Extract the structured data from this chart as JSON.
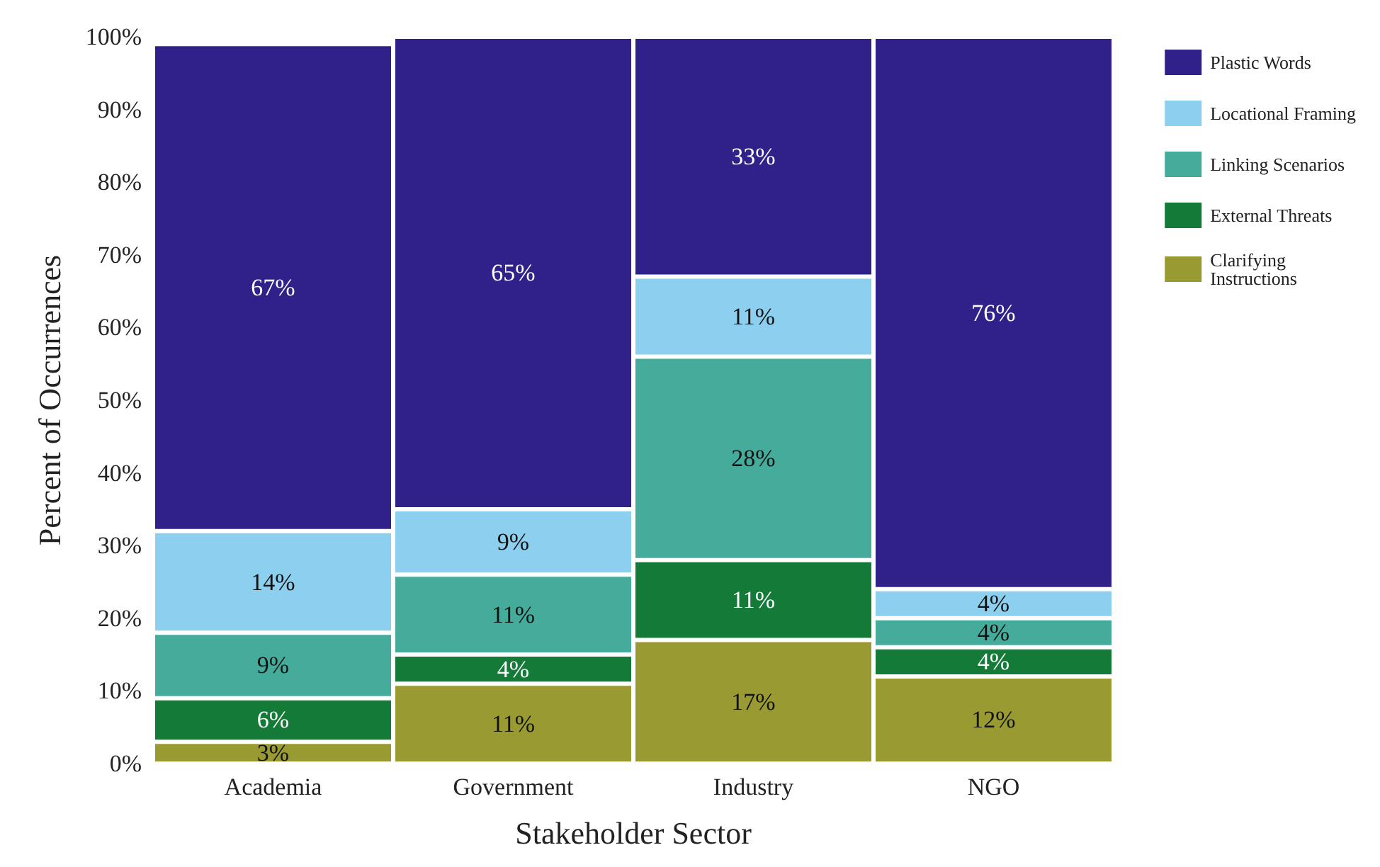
{
  "chart_data": {
    "type": "bar",
    "stacked": true,
    "xlabel": "Stakeholder Sector",
    "ylabel": "Percent of Occurrences",
    "categories": [
      "Academia",
      "Government",
      "Industry",
      "NGO"
    ],
    "series": [
      {
        "name": "Clarifying Instructions",
        "color": "#9a9a33",
        "values": [
          3,
          11,
          17,
          12
        ],
        "value_labels": [
          "3%",
          "11%",
          "17%",
          "12%"
        ]
      },
      {
        "name": "External Threats",
        "color": "#137a38",
        "values": [
          6,
          4,
          11,
          4
        ],
        "value_labels": [
          "6%",
          "4%",
          "11%",
          "4%"
        ]
      },
      {
        "name": "Linking Scenarios",
        "color": "#45ab9b",
        "values": [
          9,
          11,
          28,
          4
        ],
        "value_labels": [
          "9%",
          "11%",
          "28%",
          "4%"
        ]
      },
      {
        "name": "Locational Framing",
        "color": "#8ccfee",
        "values": [
          14,
          9,
          11,
          4
        ],
        "value_labels": [
          "14%",
          "9%",
          "11%",
          "4%"
        ]
      },
      {
        "name": "Plastic Words",
        "color": "#30208a",
        "values": [
          67,
          65,
          33,
          76
        ],
        "value_labels": [
          "67%",
          "65%",
          "33%",
          "76%"
        ]
      }
    ],
    "ylim": [
      0,
      100
    ],
    "yticks": [
      {
        "value": 0,
        "label": "0%"
      },
      {
        "value": 10,
        "label": "10%"
      },
      {
        "value": 20,
        "label": "20%"
      },
      {
        "value": 30,
        "label": "30%"
      },
      {
        "value": 40,
        "label": "40%"
      },
      {
        "value": 50,
        "label": "50%"
      },
      {
        "value": 60,
        "label": "60%"
      },
      {
        "value": 70,
        "label": "70%"
      },
      {
        "value": 80,
        "label": "80%"
      },
      {
        "value": 90,
        "label": "90%"
      },
      {
        "value": 100,
        "label": "100%"
      }
    ],
    "grid": false,
    "legend": "top right"
  }
}
